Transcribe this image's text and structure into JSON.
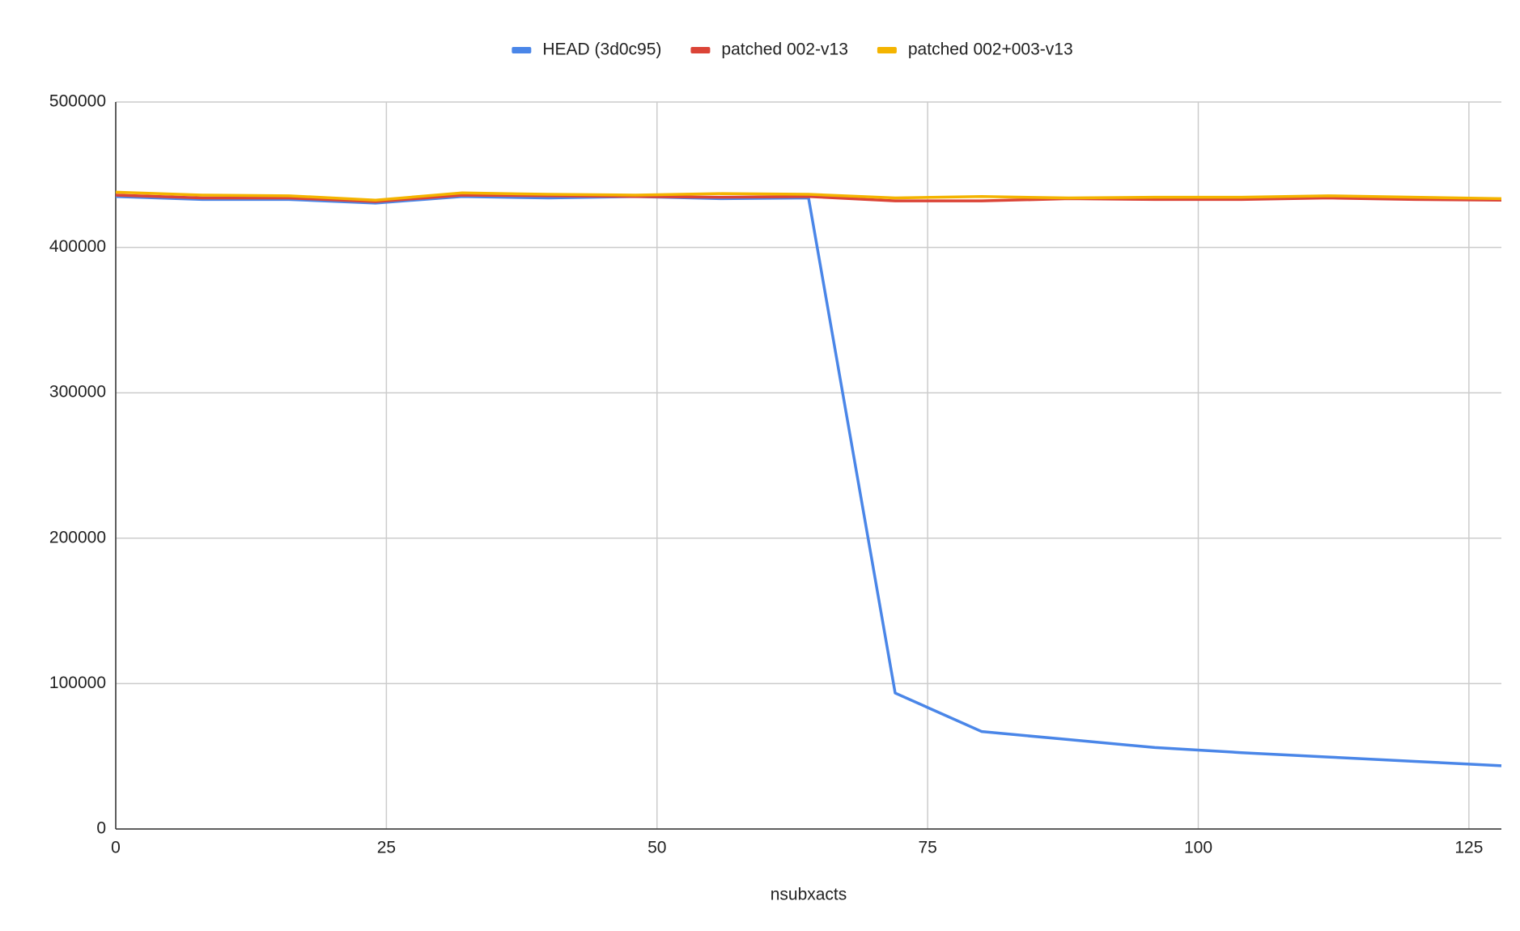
{
  "chart_data": {
    "type": "line",
    "x_label": "nsubxacts",
    "x": [
      0,
      8,
      16,
      24,
      32,
      40,
      48,
      56,
      64,
      72,
      80,
      88,
      96,
      104,
      112,
      120,
      128
    ],
    "series": [
      {
        "name": "HEAD (3d0c95)",
        "color": "#4a86e8",
        "values": [
          435000,
          433000,
          433000,
          430500,
          435000,
          434000,
          435000,
          433500,
          434000,
          93500,
          67000,
          61500,
          56000,
          52500,
          49500,
          46500,
          43500
        ]
      },
      {
        "name": "patched 002-v13",
        "color": "#db4437",
        "values": [
          436000,
          434000,
          434000,
          431500,
          436000,
          435500,
          435000,
          434500,
          435000,
          432000,
          432000,
          433500,
          433000,
          433000,
          434000,
          433000,
          432500
        ]
      },
      {
        "name": "patched 002+003-v13",
        "color": "#f4b400",
        "values": [
          438000,
          436000,
          435500,
          432500,
          437500,
          436500,
          436000,
          437000,
          436500,
          434000,
          435000,
          434000,
          434500,
          434500,
          435500,
          434500,
          433500
        ]
      }
    ],
    "xlim": [
      0,
      128
    ],
    "xticks": [
      0,
      25,
      50,
      75,
      100,
      125
    ],
    "ylim": [
      0,
      500000
    ],
    "yticks": [
      0,
      100000,
      200000,
      300000,
      400000,
      500000
    ],
    "grid": true,
    "legend": "top"
  }
}
